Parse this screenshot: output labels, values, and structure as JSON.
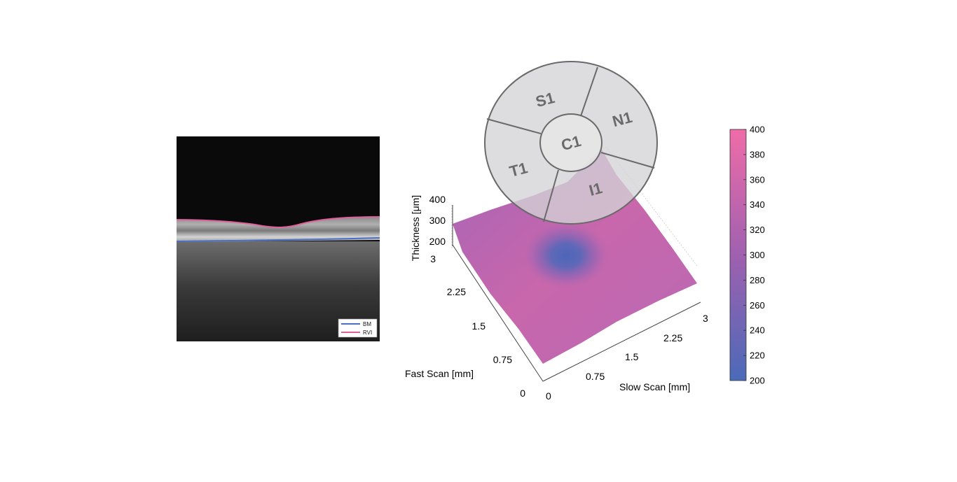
{
  "oct_panel": {
    "legend": [
      {
        "label": "BM",
        "color": "#4a6fc4"
      },
      {
        "label": "RVI",
        "color": "#e0609c"
      }
    ]
  },
  "thickness_map": {
    "z_axis_label": "Thickness [μm]",
    "z_ticks": [
      "400",
      "300",
      "200"
    ],
    "fast_axis_label": "Fast Scan [mm]",
    "fast_ticks": [
      "0",
      "0.75",
      "1.5",
      "2.25",
      "3"
    ],
    "slow_axis_label": "Slow Scan [mm]",
    "slow_ticks": [
      "0",
      "0.75",
      "1.5",
      "2.25",
      "3"
    ]
  },
  "etdrs_grid": {
    "sectors": [
      {
        "id": "S1"
      },
      {
        "id": "N1"
      },
      {
        "id": "I1"
      },
      {
        "id": "T1"
      },
      {
        "id": "C1"
      }
    ]
  },
  "colorbar": {
    "ticks": [
      "400",
      "380",
      "360",
      "340",
      "320",
      "300",
      "280",
      "260",
      "240",
      "220",
      "200"
    ],
    "low_color": "#4a6ab8",
    "mid_color": "#a060b0",
    "high_color": "#ef6ca8"
  },
  "chart_data": {
    "type": "surface",
    "zlim": [
      200,
      400
    ],
    "xlim": [
      0,
      3
    ],
    "ylim": [
      0,
      3
    ],
    "color_range": [
      200,
      400
    ]
  }
}
